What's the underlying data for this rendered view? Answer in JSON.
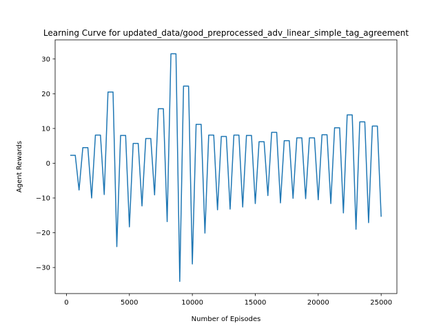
{
  "chart_data": {
    "type": "line",
    "title": "Learning Curve for updated_data/good_preprocessed_adv_linear_simple_tag_agreement",
    "xlabel": "Number of Episodes",
    "ylabel": "Agent Rewards",
    "xlim": [
      -900,
      26250
    ],
    "ylim": [
      -37.5,
      35.5
    ],
    "xticks": [
      0,
      5000,
      10000,
      15000,
      20000,
      25000
    ],
    "xtick_labels": [
      "0",
      "5000",
      "10000",
      "15000",
      "20000",
      "25000"
    ],
    "yticks": [
      -30,
      -20,
      -10,
      0,
      10,
      20,
      30
    ],
    "ytick_labels": [
      "−30",
      "−20",
      "−10",
      "0",
      "10",
      "20",
      "30"
    ],
    "grid": false,
    "series": [
      {
        "color": "#1f77b4",
        "x": [
          300,
          700,
          1000,
          1300,
          1700,
          2000,
          2300,
          2700,
          3000,
          3300,
          3700,
          4000,
          4300,
          4700,
          5000,
          5300,
          5700,
          6000,
          6300,
          6700,
          7000,
          7300,
          7700,
          8000,
          8300,
          8700,
          9000,
          9300,
          9700,
          10000,
          10300,
          10700,
          11000,
          11300,
          11700,
          12000,
          12300,
          12700,
          13000,
          13300,
          13700,
          14000,
          14300,
          14700,
          15000,
          15300,
          15700,
          16000,
          16300,
          16700,
          17000,
          17300,
          17700,
          18000,
          18300,
          18700,
          19000,
          19300,
          19700,
          20000,
          20300,
          20700,
          21000,
          21300,
          21700,
          22000,
          22300,
          22700,
          23000,
          23300,
          23700,
          24000,
          24300,
          24700,
          25000
        ],
        "y": [
          2.3,
          2.3,
          -7.7,
          4.5,
          4.5,
          -10,
          8.1,
          8.1,
          -9,
          20.5,
          20.5,
          -24,
          8,
          8,
          -18.3,
          5.7,
          5.7,
          -12.3,
          7.1,
          7.1,
          -9.1,
          15.7,
          15.7,
          -16.8,
          31.5,
          31.5,
          -34,
          22.2,
          22.2,
          -29,
          11.2,
          11.2,
          -20.1,
          8.1,
          8.1,
          -13.4,
          7.7,
          7.7,
          -13.2,
          8.1,
          8.1,
          -12.6,
          8,
          8,
          -11.6,
          6.2,
          6.2,
          -9.3,
          8.9,
          8.9,
          -11.4,
          6.5,
          6.5,
          -10.1,
          7.3,
          7.3,
          -10.2,
          7.3,
          7.3,
          -10.5,
          8.2,
          8.2,
          -11.6,
          10.2,
          10.2,
          -14.3,
          13.9,
          13.9,
          -19,
          11.9,
          11.9,
          -17.1,
          10.7,
          10.7,
          -15.4
        ]
      }
    ]
  }
}
